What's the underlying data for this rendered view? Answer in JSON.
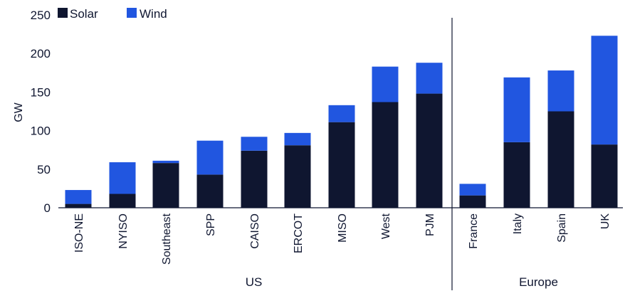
{
  "chart_data": {
    "type": "bar",
    "stacked": true,
    "ylabel": "GW",
    "ylim": [
      0,
      250
    ],
    "yticks": [
      0,
      50,
      100,
      150,
      200,
      250
    ],
    "categories": [
      "ISO-NE",
      "NYISO",
      "Southeast",
      "SPP",
      "CAISO",
      "ERCOT",
      "MISO",
      "West",
      "PJM",
      "France",
      "Italy",
      "Spain",
      "UK"
    ],
    "groups": [
      {
        "label": "US",
        "count": 9
      },
      {
        "label": "Europe",
        "count": 4
      }
    ],
    "series": [
      {
        "name": "Solar",
        "color": "#0f1630",
        "values": [
          5,
          18,
          58,
          43,
          74,
          81,
          111,
          137,
          148,
          16,
          85,
          125,
          82
        ]
      },
      {
        "name": "Wind",
        "color": "#2156e0",
        "values": [
          18,
          41,
          3,
          44,
          18,
          16,
          22,
          46,
          40,
          15,
          84,
          53,
          141
        ]
      }
    ],
    "legend_position": "top-left",
    "grid": false
  }
}
